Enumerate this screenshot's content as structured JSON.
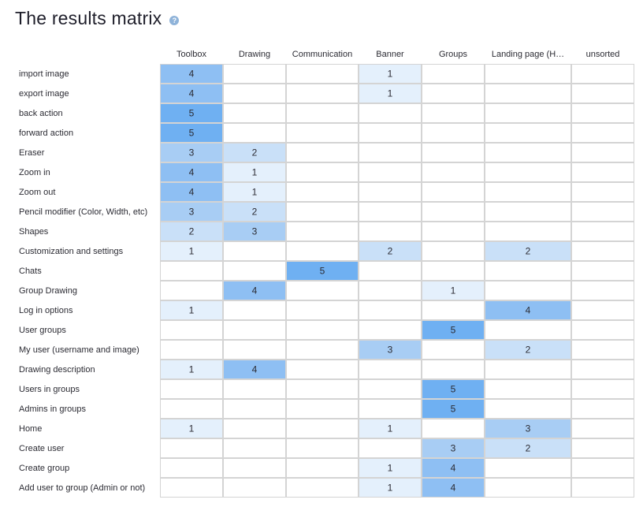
{
  "page": {
    "title": "The results matrix",
    "help_icon": "question-mark-icon",
    "help_glyph": "?"
  },
  "chart_data": {
    "type": "heatmap",
    "title": "The results matrix",
    "columns": [
      "Toolbox",
      "Drawing",
      "Communication",
      "Banner",
      "Groups",
      "Landing page (H…",
      "unsorted"
    ],
    "rows": [
      "import image",
      "export image",
      "back action",
      "forward action",
      "Eraser",
      "Zoom in",
      "Zoom out",
      "Pencil modifier (Color, Width, etc)",
      "Shapes",
      "Customization and settings",
      "Chats",
      "Group Drawing",
      "Log in options",
      "User groups",
      "My user (username and image)",
      "Drawing description",
      "Users in groups",
      "Admins in groups",
      "Home",
      "Create user",
      "Create group",
      "Add user to group (Admin or not)"
    ],
    "values": [
      [
        4,
        null,
        null,
        1,
        null,
        null,
        null
      ],
      [
        4,
        null,
        null,
        1,
        null,
        null,
        null
      ],
      [
        5,
        null,
        null,
        null,
        null,
        null,
        null
      ],
      [
        5,
        null,
        null,
        null,
        null,
        null,
        null
      ],
      [
        3,
        2,
        null,
        null,
        null,
        null,
        null
      ],
      [
        4,
        1,
        null,
        null,
        null,
        null,
        null
      ],
      [
        4,
        1,
        null,
        null,
        null,
        null,
        null
      ],
      [
        3,
        2,
        null,
        null,
        null,
        null,
        null
      ],
      [
        2,
        3,
        null,
        null,
        null,
        null,
        null
      ],
      [
        1,
        null,
        null,
        2,
        null,
        2,
        null
      ],
      [
        null,
        null,
        5,
        null,
        null,
        null,
        null
      ],
      [
        null,
        4,
        null,
        null,
        1,
        null,
        null
      ],
      [
        1,
        null,
        null,
        null,
        null,
        4,
        null
      ],
      [
        null,
        null,
        null,
        null,
        5,
        null,
        null
      ],
      [
        null,
        null,
        null,
        3,
        null,
        2,
        null
      ],
      [
        1,
        4,
        null,
        null,
        null,
        null,
        null
      ],
      [
        null,
        null,
        null,
        null,
        5,
        null,
        null
      ],
      [
        null,
        null,
        null,
        null,
        5,
        null,
        null
      ],
      [
        1,
        null,
        null,
        1,
        null,
        3,
        null
      ],
      [
        null,
        null,
        null,
        null,
        3,
        2,
        null
      ],
      [
        null,
        null,
        null,
        1,
        4,
        null,
        null
      ],
      [
        null,
        null,
        null,
        1,
        4,
        null,
        null
      ]
    ],
    "value_range": [
      1,
      5
    ],
    "colors": {
      "1": "#e4f0fc",
      "2": "#c9e0f8",
      "3": "#a8cdf4",
      "4": "#8ebff3",
      "5": "#6fb0f2",
      "grid": "#d4d4d4"
    }
  }
}
